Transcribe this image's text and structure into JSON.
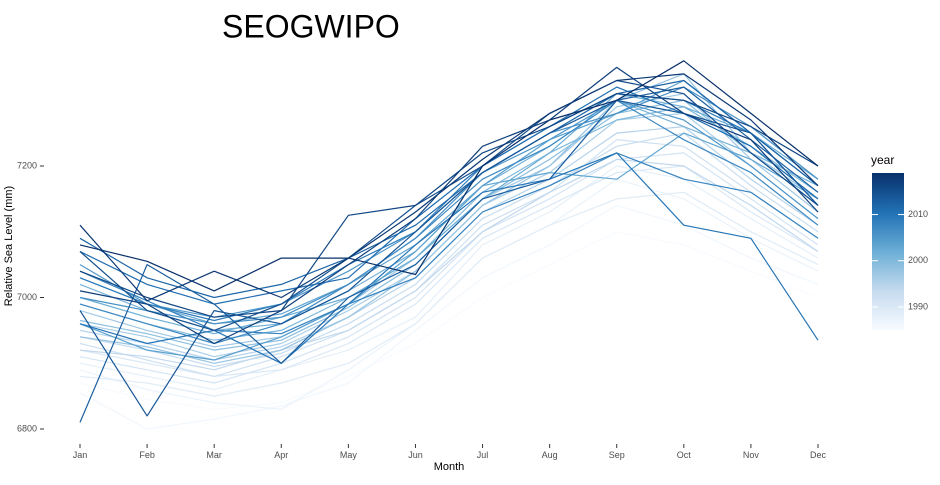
{
  "chart_data": {
    "type": "line",
    "title": "SEOGWIPO",
    "xlabel": "Month",
    "ylabel": "Relative Sea Level (mm)",
    "categories": [
      "Jan",
      "Feb",
      "Mar",
      "Apr",
      "May",
      "Jun",
      "Jul",
      "Aug",
      "Sep",
      "Oct",
      "Nov",
      "Dec"
    ],
    "ylim": [
      6770,
      7370
    ],
    "yticks": [
      6800,
      7000,
      7200
    ],
    "grid": false,
    "legend": {
      "title": "year",
      "position": "right",
      "type": "continuous-colorbar",
      "range": [
        1985,
        2019
      ],
      "ticks": [
        1990,
        2000,
        2010
      ],
      "color_low": "#f7fbff",
      "color_high": "#08306b"
    },
    "series": [
      {
        "year": 1985,
        "values": [
          6870,
          6845,
          6830,
          6840,
          6880,
          6930,
          7000,
          7050,
          7100,
          7080,
          7040,
          7000
        ]
      },
      {
        "year": 1986,
        "values": [
          6855,
          6800,
          6815,
          6835,
          6870,
          6950,
          7030,
          7080,
          7140,
          7110,
          7060,
          7020
        ]
      },
      {
        "year": 1987,
        "values": [
          6890,
          6860,
          6840,
          6830,
          6890,
          6960,
          7060,
          7110,
          7180,
          7150,
          7090,
          7040
        ]
      },
      {
        "year": 1988,
        "values": [
          6900,
          6880,
          6860,
          6890,
          6920,
          6970,
          7080,
          7130,
          7200,
          7180,
          7120,
          7060
        ]
      },
      {
        "year": 1989,
        "values": [
          6880,
          6870,
          6850,
          6870,
          6900,
          6960,
          7060,
          7110,
          7150,
          7160,
          7100,
          7050
        ]
      },
      {
        "year": 1990,
        "values": [
          6920,
          6900,
          6880,
          6890,
          6930,
          6990,
          7090,
          7140,
          7190,
          7200,
          7130,
          7070
        ]
      },
      {
        "year": 1991,
        "values": [
          6910,
          6890,
          6870,
          6900,
          6940,
          7000,
          7100,
          7150,
          7210,
          7220,
          7150,
          7080
        ]
      },
      {
        "year": 1992,
        "values": [
          6930,
          6905,
          6880,
          6910,
          6950,
          7010,
          7110,
          7160,
          7240,
          7230,
          7160,
          7090
        ]
      },
      {
        "year": 1993,
        "values": [
          6940,
          6920,
          6895,
          6915,
          6960,
          7020,
          7120,
          7170,
          7230,
          7250,
          7170,
          7100
        ]
      },
      {
        "year": 1994,
        "values": [
          6920,
          6910,
          6890,
          6920,
          6950,
          7010,
          7100,
          7160,
          7210,
          7200,
          7140,
          7070
        ]
      },
      {
        "year": 1995,
        "values": [
          6950,
          6930,
          6905,
          6925,
          6970,
          7030,
          7130,
          7180,
          7250,
          7260,
          7180,
          7110
        ]
      },
      {
        "year": 1996,
        "values": [
          6960,
          6940,
          6910,
          6930,
          6980,
          7040,
          7140,
          7190,
          7270,
          7280,
          7200,
          7120
        ]
      },
      {
        "year": 1997,
        "values": [
          6980,
          6950,
          6925,
          6940,
          6990,
          7060,
          7150,
          7200,
          7290,
          7310,
          7210,
          7130
        ]
      },
      {
        "year": 1998,
        "values": [
          6940,
          6925,
          6900,
          6920,
          6970,
          7040,
          7140,
          7200,
          7300,
          7340,
          7220,
          7140
        ]
      },
      {
        "year": 1999,
        "values": [
          6965,
          6945,
          6920,
          6935,
          6985,
          7050,
          7150,
          7210,
          7280,
          7300,
          7220,
          7150
        ]
      },
      {
        "year": 2000,
        "values": [
          6990,
          6960,
          6935,
          6950,
          7000,
          7060,
          7160,
          7220,
          7270,
          7290,
          7230,
          7160
        ]
      },
      {
        "year": 2001,
        "values": [
          7020,
          6980,
          6950,
          6960,
          7010,
          7070,
          7170,
          7230,
          7300,
          7260,
          7220,
          7170
        ]
      },
      {
        "year": 2002,
        "values": [
          7000,
          6970,
          6945,
          6970,
          7000,
          7060,
          7150,
          7220,
          7310,
          7290,
          7250,
          7180
        ]
      },
      {
        "year": 2003,
        "values": [
          7030,
          6990,
          6960,
          6975,
          7020,
          7080,
          7170,
          7190,
          7180,
          7250,
          7210,
          7150
        ]
      },
      {
        "year": 2004,
        "values": [
          6960,
          6920,
          6905,
          6940,
          6990,
          7070,
          7170,
          7240,
          7280,
          7330,
          7250,
          7140
        ]
      },
      {
        "year": 2005,
        "values": [
          7050,
          6990,
          6970,
          6990,
          7040,
          7100,
          7190,
          7240,
          7300,
          7270,
          7200,
          7120
        ]
      },
      {
        "year": 2006,
        "values": [
          7000,
          6980,
          6960,
          6970,
          7020,
          7090,
          7190,
          7250,
          7280,
          7320,
          7260,
          7180
        ]
      },
      {
        "year": 2007,
        "values": [
          6990,
          6960,
          6930,
          6960,
          7020,
          7090,
          7180,
          7230,
          7300,
          7240,
          7190,
          7110
        ]
      },
      {
        "year": 2008,
        "values": [
          7040,
          6995,
          6950,
          6945,
          6990,
          7030,
          7130,
          7170,
          7220,
          7180,
          7160,
          7090
        ]
      },
      {
        "year": 2009,
        "values": [
          7030,
          6990,
          6965,
          6990,
          7050,
          7100,
          7200,
          7260,
          7310,
          7300,
          7250,
          7170
        ]
      },
      {
        "year": 2010,
        "values": [
          6960,
          6930,
          6950,
          6900,
          6990,
          7080,
          7160,
          7180,
          7220,
          7110,
          7090,
          6935
        ]
      },
      {
        "year": 2011,
        "values": [
          7070,
          7020,
          6990,
          7010,
          7030,
          7120,
          7200,
          7260,
          7320,
          7280,
          7230,
          7150
        ]
      },
      {
        "year": 2012,
        "values": [
          7090,
          7030,
          7000,
          7020,
          7060,
          7110,
          7190,
          7250,
          7310,
          7330,
          7250,
          7170
        ]
      },
      {
        "year": 2013,
        "values": [
          6810,
          7050,
          6990,
          6900,
          7000,
          7050,
          7150,
          7180,
          7300,
          7320,
          7240,
          7160
        ]
      },
      {
        "year": 2014,
        "values": [
          6980,
          6820,
          6980,
          6960,
          7010,
          7100,
          7190,
          7250,
          7300,
          7280,
          7250,
          7140
        ]
      },
      {
        "year": 2015,
        "values": [
          7070,
          6980,
          6950,
          6990,
          7060,
          7140,
          7200,
          7280,
          7330,
          7310,
          7220,
          7140
        ]
      },
      {
        "year": 2016,
        "values": [
          7040,
          7000,
          6970,
          6980,
          7125,
          7140,
          7220,
          7260,
          7310,
          7300,
          7260,
          7200
        ]
      },
      {
        "year": 2017,
        "values": [
          7010,
          6990,
          6930,
          6980,
          7050,
          7120,
          7230,
          7270,
          7350,
          7280,
          7240,
          7130
        ]
      },
      {
        "year": 2018,
        "values": [
          7110,
          6995,
          7040,
          7000,
          7060,
          7130,
          7210,
          7280,
          7330,
          7340,
          7270,
          7170
        ]
      },
      {
        "year": 2019,
        "values": [
          7080,
          7055,
          7010,
          7060,
          7060,
          7035,
          7200,
          7270,
          7300,
          7360,
          7280,
          7200
        ]
      }
    ]
  }
}
